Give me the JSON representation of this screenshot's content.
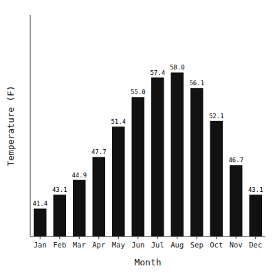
{
  "chart_data": {
    "type": "bar",
    "categories": [
      "Jan",
      "Feb",
      "Mar",
      "Apr",
      "May",
      "Jun",
      "Jul",
      "Aug",
      "Sep",
      "Oct",
      "Nov",
      "Dec"
    ],
    "values": [
      41.4,
      43.1,
      44.9,
      47.7,
      51.4,
      55.0,
      57.4,
      58.0,
      56.1,
      52.1,
      46.7,
      43.1
    ],
    "value_labels": [
      "41.4",
      "43.1",
      "44.9",
      "47.7",
      "51.4",
      "55.0",
      "57.4",
      "58.0",
      "56.1",
      "52.1",
      "46.7",
      "43.1"
    ],
    "color": "#111111",
    "x_label": "Month",
    "y_label": "Temperature (F)",
    "ylim": [
      38,
      65
    ],
    "data_labels": true,
    "tick_labels": "x"
  }
}
